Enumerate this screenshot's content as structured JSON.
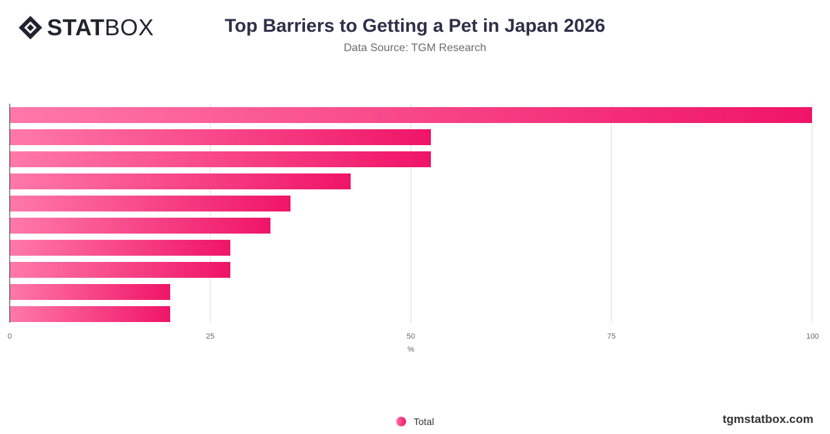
{
  "header": {
    "logo_bold": "STAT",
    "logo_light": "BOX",
    "title": "Top Barriers to Getting a Pet in Japan 2026",
    "subtitle": "Data Source: TGM Research"
  },
  "chart_data": {
    "type": "bar",
    "orientation": "horizontal",
    "categories": [
      "",
      "",
      "",
      "",
      "",
      "",
      "",
      "",
      "",
      ""
    ],
    "series": [
      {
        "name": "Total",
        "values": [
          100,
          52.5,
          52.5,
          42.5,
          35,
          32.5,
          27.5,
          27.5,
          20,
          20
        ]
      }
    ],
    "xlabel": "%",
    "xlim": [
      0,
      100
    ],
    "xticks": [
      0,
      25,
      50,
      75,
      100
    ],
    "grid": true,
    "legend_position": "bottom-center",
    "colors": {
      "bar_start": "#ff79a8",
      "bar_end": "#f01468",
      "grid": "#dddddd",
      "axis": "#333333"
    }
  },
  "legend": {
    "label": "Total"
  },
  "footer": {
    "brand": "tgmstatbox.com"
  }
}
